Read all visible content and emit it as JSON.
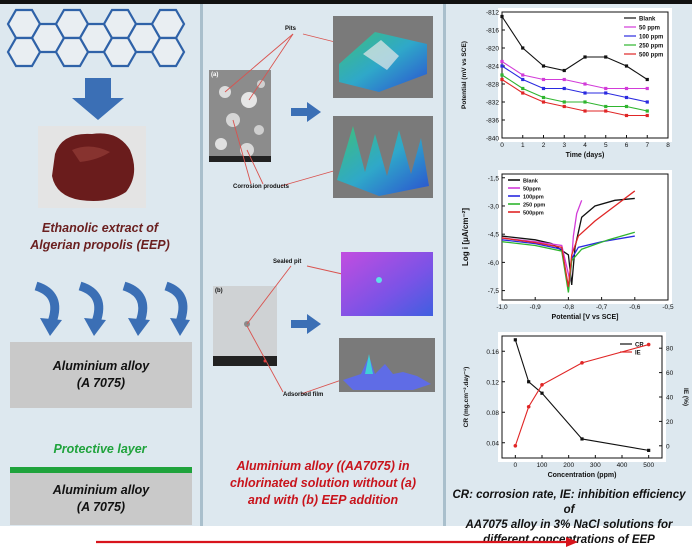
{
  "left_panel": {
    "extract_caption_line1": "Ethanolic extract of",
    "extract_caption_line2": "Algerian propolis (EEP)",
    "alloy_box1_line1": "Aluminium alloy",
    "alloy_box1_line2": "(A 7075)",
    "protective_layer": "Protective layer",
    "alloy_box2_line1": "Aluminium alloy",
    "alloy_box2_line2": "(A 7075)",
    "colors": {
      "protective": "#1fa33c",
      "arrow": "#3b6fb5",
      "propolis": "#6a1c1c"
    }
  },
  "middle_panel": {
    "label_a": "(a)",
    "label_b": "(b)",
    "pits": "Pits",
    "corrosion_products": "Corrosion products",
    "sealed_pit": "Sealed pit",
    "adsorbed_film": "Adsorbed film",
    "caption_line1": "Aluminium alloy ((AA7075) in",
    "caption_line2": "chlorinated solution without (a)",
    "caption_line3": "and with (b) EEP addition"
  },
  "right_panel": {
    "caption_line1": "CR: corrosion rate, IE: inhibition efficiency of",
    "caption_line2": "AA7075 alloy in 3% NaCl solutions for",
    "caption_line3": "different concentrations of EEP"
  },
  "chart_data": [
    {
      "type": "line",
      "xlabel": "Time (days)",
      "ylabel": "Potential (mV vs SCE)",
      "xlim": [
        0,
        8
      ],
      "ylim": [
        -840,
        -812
      ],
      "xticks": [
        "0",
        "1",
        "2",
        "3",
        "4",
        "5",
        "6",
        "7",
        "8"
      ],
      "yticks": [
        "-812",
        "-816",
        "-820",
        "-824",
        "-828",
        "-832",
        "-836",
        "-840"
      ],
      "legend": "top-right",
      "x": [
        0,
        1,
        2,
        3,
        4,
        5,
        6,
        7
      ],
      "series": [
        {
          "name": "Blank",
          "color": "#111111",
          "values": [
            -813,
            -820,
            -824,
            -825,
            -822,
            -822,
            -824,
            -827
          ]
        },
        {
          "name": "50 ppm",
          "color": "#d23bd8",
          "values": [
            -823,
            -826,
            -827,
            -827,
            -828,
            -829,
            -829,
            -829
          ]
        },
        {
          "name": "100 ppm",
          "color": "#2a2ae0",
          "values": [
            -824,
            -827,
            -829,
            -829,
            -830,
            -830,
            -831,
            -832
          ]
        },
        {
          "name": "250 ppm",
          "color": "#2fb52f",
          "values": [
            -826,
            -829,
            -831,
            -832,
            -832,
            -833,
            -833,
            -834
          ]
        },
        {
          "name": "500 ppm",
          "color": "#e02626",
          "values": [
            -827,
            -830,
            -832,
            -833,
            -834,
            -834,
            -835,
            -835
          ]
        }
      ]
    },
    {
      "type": "line",
      "xlabel": "Potential [V vs SCE]",
      "ylabel": "Log i [μA/cm⁻²]",
      "xlim": [
        -1.0,
        -0.5
      ],
      "ylim": [
        -8.0,
        -1.3
      ],
      "xticks": [
        "-1,0",
        "-0,9",
        "-0,8",
        "-0,7",
        "-0,6",
        "-0,5"
      ],
      "yticks": [
        "-1,5",
        "-3,0",
        "-4,5",
        "-6,0",
        "-7,5"
      ],
      "legend": "top-left",
      "series": [
        {
          "name": "Blank",
          "color": "#111111",
          "points": [
            [
              -1.0,
              -4.6
            ],
            [
              -0.9,
              -4.8
            ],
            [
              -0.85,
              -5.0
            ],
            [
              -0.8,
              -5.6
            ],
            [
              -0.79,
              -7.2
            ],
            [
              -0.78,
              -5.2
            ],
            [
              -0.76,
              -3.6
            ],
            [
              -0.72,
              -3.0
            ],
            [
              -0.66,
              -2.7
            ],
            [
              -0.6,
              -2.6
            ]
          ]
        },
        {
          "name": "50ppm",
          "color": "#d23bd8",
          "points": [
            [
              -1.0,
              -4.7
            ],
            [
              -0.9,
              -4.9
            ],
            [
              -0.82,
              -5.1
            ],
            [
              -0.795,
              -7.0
            ],
            [
              -0.785,
              -4.6
            ],
            [
              -0.775,
              -3.4
            ],
            [
              -0.76,
              -2.7
            ]
          ]
        },
        {
          "name": "100ppm",
          "color": "#2a2ae0",
          "points": [
            [
              -1.0,
              -4.8
            ],
            [
              -0.9,
              -5.0
            ],
            [
              -0.82,
              -5.3
            ],
            [
              -0.8,
              -7.4
            ],
            [
              -0.79,
              -5.8
            ],
            [
              -0.77,
              -5.2
            ],
            [
              -0.7,
              -4.9
            ],
            [
              -0.6,
              -4.6
            ]
          ]
        },
        {
          "name": "250 ppm",
          "color": "#2fb52f",
          "points": [
            [
              -1.0,
              -4.9
            ],
            [
              -0.9,
              -5.1
            ],
            [
              -0.82,
              -5.4
            ],
            [
              -0.8,
              -7.6
            ],
            [
              -0.79,
              -5.9
            ],
            [
              -0.76,
              -5.3
            ],
            [
              -0.68,
              -4.8
            ],
            [
              -0.6,
              -4.4
            ]
          ]
        },
        {
          "name": "500ppm",
          "color": "#e02626",
          "points": [
            [
              -1.0,
              -4.7
            ],
            [
              -0.9,
              -4.95
            ],
            [
              -0.82,
              -5.2
            ],
            [
              -0.8,
              -7.3
            ],
            [
              -0.79,
              -5.6
            ],
            [
              -0.77,
              -4.6
            ],
            [
              -0.72,
              -3.8
            ],
            [
              -0.66,
              -3.0
            ],
            [
              -0.6,
              -2.2
            ]
          ]
        }
      ]
    },
    {
      "type": "line",
      "xlabel": "Concentration (ppm)",
      "ylabel": "CR (mg.cm⁻².day⁻¹)",
      "ylabel2": "IE (%)",
      "xlim": [
        -50,
        550
      ],
      "ylim": [
        0.02,
        0.18
      ],
      "ylim2": [
        -10,
        90
      ],
      "xticks": [
        "0",
        "100",
        "200",
        "300",
        "400",
        "500"
      ],
      "yticks": [
        "0.04",
        "0.08",
        "0.12",
        "0.16"
      ],
      "yticks2": [
        "0",
        "20",
        "40",
        "60",
        "80"
      ],
      "legend": "top-right",
      "x": [
        0,
        50,
        100,
        250,
        500
      ],
      "series": [
        {
          "name": "CR",
          "color": "#111111",
          "axis": "left",
          "values": [
            0.175,
            0.12,
            0.105,
            0.045,
            0.03
          ]
        },
        {
          "name": "IE",
          "color": "#e02626",
          "axis": "right",
          "values": [
            0,
            32,
            50,
            68,
            83
          ]
        }
      ]
    }
  ]
}
